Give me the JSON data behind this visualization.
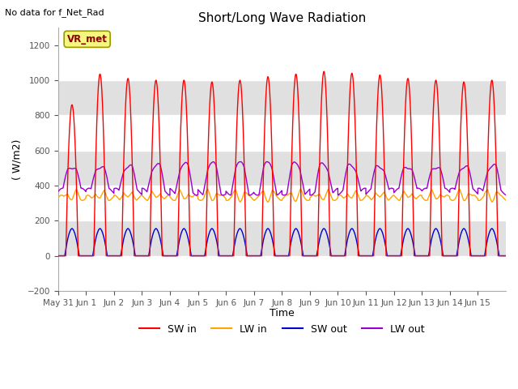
{
  "title": "Short/Long Wave Radiation",
  "ylabel": "( W/m2)",
  "xlabel": "Time",
  "ylim": [
    -200,
    1300
  ],
  "yticks": [
    -200,
    0,
    200,
    400,
    600,
    800,
    1000,
    1200
  ],
  "text_no_data": "No data for f_Net_Rad",
  "legend_label": "VR_met",
  "sw_in_color": "#ff0000",
  "lw_in_color": "#ffa500",
  "sw_out_color": "#0000cc",
  "lw_out_color": "#9900cc",
  "n_days": 16,
  "xtick_labels": [
    "May 31",
    "Jun 1",
    "Jun 2",
    "Jun 3",
    "Jun 4",
    "Jun 5",
    "Jun 6",
    "Jun 7",
    "Jun 8",
    "Jun 9",
    "Jun 10",
    "Jun 11",
    "Jun 12",
    "Jun 13",
    "Jun 14",
    "Jun 15"
  ],
  "time_label": "Time",
  "band_colors": [
    "#ffffff",
    "#e0e0e0"
  ],
  "sw_in_peaks": [
    860,
    1035,
    1010,
    1000,
    1000,
    990,
    1000,
    1020,
    1035,
    1050,
    1040,
    1030,
    1010,
    1000,
    990,
    1000
  ]
}
